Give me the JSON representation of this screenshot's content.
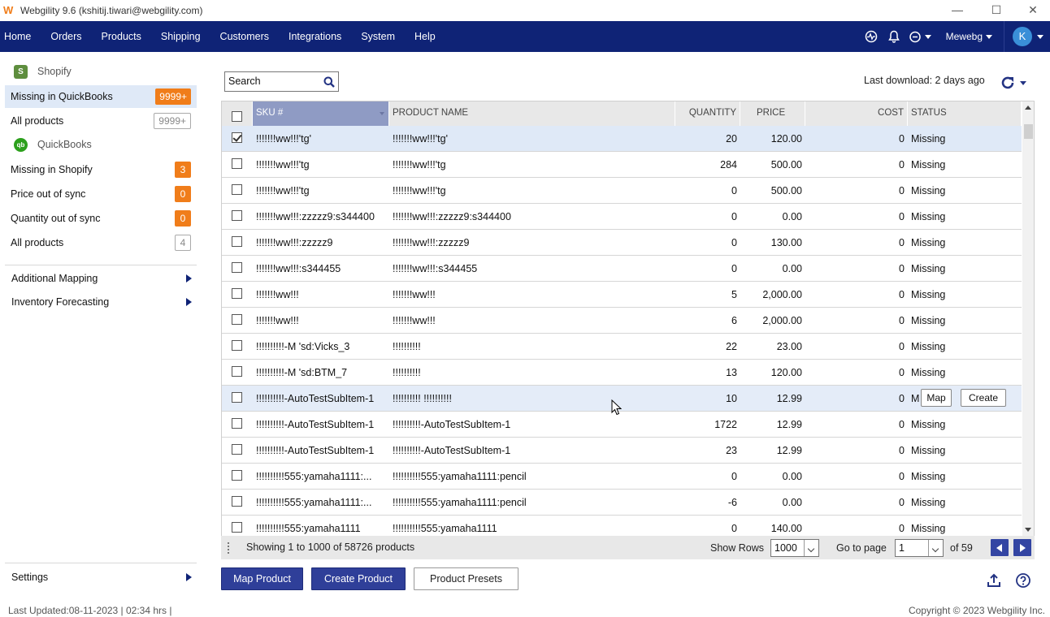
{
  "window": {
    "title": "Webgility 9.6 (kshitij.tiwari@webgility.com)",
    "min": "—",
    "max": "☐",
    "close": "✕"
  },
  "nav": {
    "items": [
      "Home",
      "Orders",
      "Products",
      "Shipping",
      "Customers",
      "Integrations",
      "System",
      "Help"
    ],
    "user": "Mewebg",
    "avatar": "K"
  },
  "sidebar": {
    "shopify_label": "Shopify",
    "shopify_icon_glyph": "S",
    "qb_label": "QuickBooks",
    "qb_icon_glyph": "qb",
    "shopify_items": [
      {
        "label": "Missing in QuickBooks",
        "badge": "9999+",
        "style": "orange",
        "active": true
      },
      {
        "label": "All products",
        "badge": "9999+",
        "style": "outline",
        "active": false
      }
    ],
    "qb_items": [
      {
        "label": "Missing in Shopify",
        "badge": "3",
        "style": "orange"
      },
      {
        "label": "Price out of sync",
        "badge": "0",
        "style": "orange"
      },
      {
        "label": "Quantity out of sync",
        "badge": "0",
        "style": "orange"
      },
      {
        "label": "All products",
        "badge": "4",
        "style": "outline"
      }
    ],
    "links": [
      "Additional Mapping",
      "Inventory Forecasting"
    ],
    "settings": "Settings"
  },
  "toolbar": {
    "search_value": "Search",
    "last_download": "Last download: 2 days ago"
  },
  "grid": {
    "columns": {
      "sku": "SKU #",
      "name": "PRODUCT NAME",
      "qty": "QUANTITY",
      "price": "PRICE",
      "cost": "COST",
      "status": "STATUS"
    },
    "rows": [
      {
        "sku": "!!!!!!!ww!!!'tg'",
        "name": "!!!!!!!ww!!!'tg'",
        "qty": "20",
        "price": "120.00",
        "cost": "0",
        "status": "Missing",
        "checked": true
      },
      {
        "sku": "!!!!!!!ww!!!'tg",
        "name": "!!!!!!!ww!!!'tg",
        "qty": "284",
        "price": "500.00",
        "cost": "0",
        "status": "Missing"
      },
      {
        "sku": "!!!!!!!ww!!!'tg",
        "name": "!!!!!!!ww!!!'tg",
        "qty": "0",
        "price": "500.00",
        "cost": "0",
        "status": "Missing"
      },
      {
        "sku": "!!!!!!!ww!!!:zzzzz9:s344400",
        "name": "!!!!!!!ww!!!:zzzzz9:s344400",
        "qty": "0",
        "price": "0.00",
        "cost": "0",
        "status": "Missing"
      },
      {
        "sku": "!!!!!!!ww!!!:zzzzz9",
        "name": "!!!!!!!ww!!!:zzzzz9",
        "qty": "0",
        "price": "130.00",
        "cost": "0",
        "status": "Missing"
      },
      {
        "sku": "!!!!!!!ww!!!:s344455",
        "name": "!!!!!!!ww!!!:s344455",
        "qty": "0",
        "price": "0.00",
        "cost": "0",
        "status": "Missing"
      },
      {
        "sku": "!!!!!!!ww!!!",
        "name": "!!!!!!!ww!!!",
        "qty": "5",
        "price": "2,000.00",
        "cost": "0",
        "status": "Missing"
      },
      {
        "sku": "!!!!!!!ww!!!",
        "name": "!!!!!!!ww!!!",
        "qty": "6",
        "price": "2,000.00",
        "cost": "0",
        "status": "Missing"
      },
      {
        "sku": "!!!!!!!!!!-M 'sd:Vicks_3",
        "name": "!!!!!!!!!!",
        "qty": "22",
        "price": "23.00",
        "cost": "0",
        "status": "Missing"
      },
      {
        "sku": "!!!!!!!!!!-M 'sd:BTM_7",
        "name": "!!!!!!!!!!",
        "qty": "13",
        "price": "120.00",
        "cost": "0",
        "status": "Missing"
      },
      {
        "sku": "!!!!!!!!!!-AutoTestSubItem-1",
        "name": "!!!!!!!!!! !!!!!!!!!!",
        "qty": "10",
        "price": "12.99",
        "cost": "0",
        "status": "M",
        "hover": true
      },
      {
        "sku": "!!!!!!!!!!-AutoTestSubItem-1",
        "name": "!!!!!!!!!!-AutoTestSubItem-1",
        "qty": "1722",
        "price": "12.99",
        "cost": "0",
        "status": "Missing"
      },
      {
        "sku": "!!!!!!!!!!-AutoTestSubItem-1",
        "name": "!!!!!!!!!!-AutoTestSubItem-1",
        "qty": "23",
        "price": "12.99",
        "cost": "0",
        "status": "Missing"
      },
      {
        "sku": "!!!!!!!!!!555:yamaha1111:...",
        "name": "!!!!!!!!!!555:yamaha1111:pencil",
        "qty": "0",
        "price": "0.00",
        "cost": "0",
        "status": "Missing"
      },
      {
        "sku": "!!!!!!!!!!555:yamaha1111:...",
        "name": "!!!!!!!!!!555:yamaha1111:pencil",
        "qty": "-6",
        "price": "0.00",
        "cost": "0",
        "status": "Missing"
      },
      {
        "sku": "!!!!!!!!!!555:yamaha1111",
        "name": "!!!!!!!!!!555:yamaha1111",
        "qty": "0",
        "price": "140.00",
        "cost": "0",
        "status": "Missing"
      }
    ],
    "row_actions": {
      "map": "Map",
      "create": "Create"
    }
  },
  "footer": {
    "showing": "Showing 1 to 1000 of 58726 products",
    "show_rows_label": "Show Rows",
    "show_rows_value": "1000",
    "goto_label": "Go to page",
    "page_value": "1",
    "of_pages": "of 59"
  },
  "actions": {
    "map_product": "Map Product",
    "create_product": "Create Product",
    "presets": "Product Presets"
  },
  "status": {
    "left": "Last Updated:08-11-2023 | 02:34 hrs |",
    "right": "Copyright © 2023 Webgility Inc."
  },
  "colors": {
    "navbar": "#0f2376",
    "accent_orange": "#f07d1a",
    "primary_button": "#2f3f99",
    "selected_row": "#dfe9f7",
    "sku_header": "#8f9bc4"
  }
}
